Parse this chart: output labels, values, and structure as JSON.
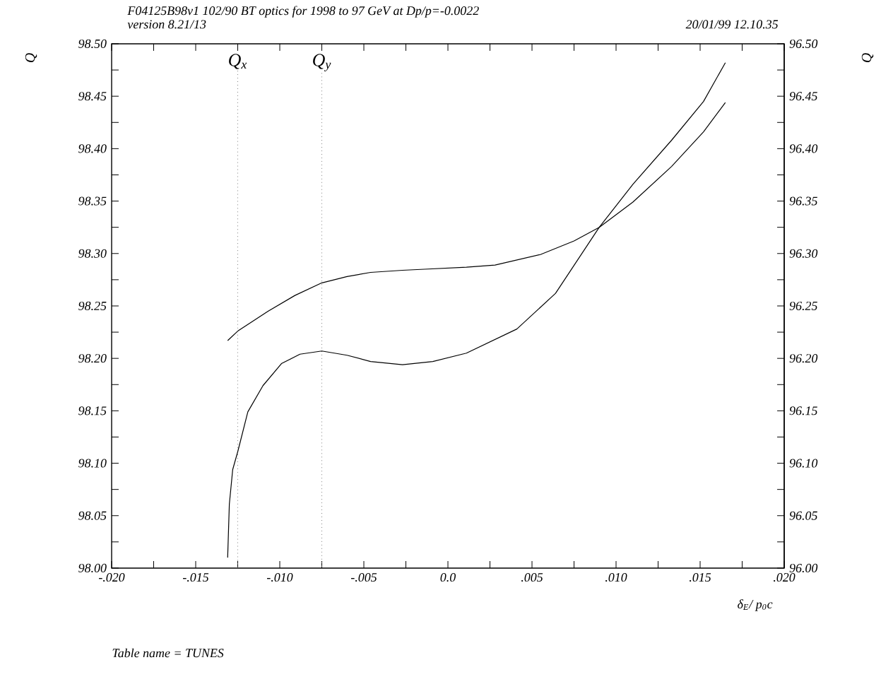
{
  "chart_data": {
    "type": "line",
    "title": "F04125B98v1 102/90 BT optics for 1998 to 97 GeV at Dp/p=-0.0022",
    "subtitle": "version 8.21/13",
    "annotations": [
      "20/01/99  12.10.35",
      "Table name = TUNES"
    ],
    "xlabel": "δ$_{E}$/ p$_{0}$c",
    "ylabel": "Q",
    "y2label": "Q",
    "series": [
      {
        "color": "#000000",
        "x": [
          -0.0131,
          -0.0125,
          -0.0107,
          -0.0091,
          -0.0075,
          -0.006,
          -0.0046,
          -0.0027,
          -0.0014,
          0.0011,
          0.0028,
          0.0055,
          0.0075,
          0.009,
          0.011,
          0.0133,
          0.0152,
          0.0165
        ],
        "values": [
          98.217,
          98.226,
          98.245,
          98.26,
          98.272,
          98.278,
          98.282,
          98.284,
          98.285,
          98.287,
          98.289,
          98.299,
          98.312,
          98.325,
          98.349,
          98.383,
          98.416,
          98.444
        ]
      },
      {
        "color": "#000000",
        "axis": "y2",
        "x": [
          -0.0131,
          -0.013,
          -0.0128,
          -0.0125,
          -0.0119,
          -0.011,
          -0.0099,
          -0.0088,
          -0.0075,
          -0.006,
          -0.0046,
          -0.0027,
          -0.0009,
          0.0011,
          0.0041,
          0.0064,
          0.009,
          0.011,
          0.0133,
          0.0152,
          0.0165
        ],
        "values": [
          96.01,
          96.061,
          96.094,
          96.111,
          96.149,
          96.174,
          96.195,
          96.204,
          96.207,
          96.203,
          96.197,
          96.194,
          96.197,
          96.205,
          96.228,
          96.262,
          96.325,
          96.366,
          96.408,
          96.445,
          96.482
        ]
      }
    ],
    "ref_lines": [
      {
        "axis": "x",
        "value": -0.0125,
        "label": "Q$_{x}$",
        "color": "#808080",
        "line_style": "dotted"
      },
      {
        "axis": "x",
        "value": -0.0075,
        "label": "Q$_{y}$",
        "color": "#808080",
        "line_style": "dotted"
      }
    ],
    "marker": "none",
    "line_style": "solid",
    "xlim": [
      -0.02,
      0.02
    ],
    "xticks": [
      {
        "value": -0.02,
        "label": "-.020"
      },
      {
        "value": -0.0175,
        "label": null
      },
      {
        "value": -0.015,
        "label": "-.015"
      },
      {
        "value": -0.0125,
        "label": null
      },
      {
        "value": -0.01,
        "label": "-.010"
      },
      {
        "value": -0.0075,
        "label": null
      },
      {
        "value": -0.005,
        "label": "-.005"
      },
      {
        "value": -0.0025,
        "label": null
      },
      {
        "value": 0,
        "label": "0.0"
      },
      {
        "value": 0.0025,
        "label": null
      },
      {
        "value": 0.005,
        "label": ".005"
      },
      {
        "value": 0.0075,
        "label": null
      },
      {
        "value": 0.01,
        "label": ".010"
      },
      {
        "value": 0.0125,
        "label": null
      },
      {
        "value": 0.015,
        "label": ".015"
      },
      {
        "value": 0.0175,
        "label": null
      },
      {
        "value": 0.02,
        "label": ".020"
      }
    ],
    "ylim": [
      98.0,
      98.5
    ],
    "yticks": [
      {
        "value": 98.0,
        "label": "98.00"
      },
      {
        "value": 98.025,
        "label": null
      },
      {
        "value": 98.05,
        "label": "98.05"
      },
      {
        "value": 98.075,
        "label": null
      },
      {
        "value": 98.1,
        "label": "98.10"
      },
      {
        "value": 98.125,
        "label": null
      },
      {
        "value": 98.15,
        "label": "98.15"
      },
      {
        "value": 98.175,
        "label": null
      },
      {
        "value": 98.2,
        "label": "98.20"
      },
      {
        "value": 98.225,
        "label": null
      },
      {
        "value": 98.25,
        "label": "98.25"
      },
      {
        "value": 98.275,
        "label": null
      },
      {
        "value": 98.3,
        "label": "98.30"
      },
      {
        "value": 98.325,
        "label": null
      },
      {
        "value": 98.35,
        "label": "98.35"
      },
      {
        "value": 98.375,
        "label": null
      },
      {
        "value": 98.4,
        "label": "98.40"
      },
      {
        "value": 98.425,
        "label": null
      },
      {
        "value": 98.45,
        "label": "98.45"
      },
      {
        "value": 98.475,
        "label": null
      },
      {
        "value": 98.5,
        "label": "98.50"
      }
    ],
    "y2lim": [
      96.0,
      96.5
    ],
    "y2ticks": [
      {
        "value": 96.0,
        "label": "96.00"
      },
      {
        "value": 96.025,
        "label": null
      },
      {
        "value": 96.05,
        "label": "96.05"
      },
      {
        "value": 96.075,
        "label": null
      },
      {
        "value": 96.1,
        "label": "96.10"
      },
      {
        "value": 96.125,
        "label": null
      },
      {
        "value": 96.15,
        "label": "96.15"
      },
      {
        "value": 96.175,
        "label": null
      },
      {
        "value": 96.2,
        "label": "96.20"
      },
      {
        "value": 96.225,
        "label": null
      },
      {
        "value": 96.25,
        "label": "96.25"
      },
      {
        "value": 96.275,
        "label": null
      },
      {
        "value": 96.3,
        "label": "96.30"
      },
      {
        "value": 96.325,
        "label": null
      },
      {
        "value": 96.35,
        "label": "96.35"
      },
      {
        "value": 96.375,
        "label": null
      },
      {
        "value": 96.4,
        "label": "96.40"
      },
      {
        "value": 96.425,
        "label": null
      },
      {
        "value": 96.45,
        "label": "96.45"
      },
      {
        "value": 96.475,
        "label": null
      },
      {
        "value": 96.5,
        "label": "96.50"
      }
    ]
  }
}
